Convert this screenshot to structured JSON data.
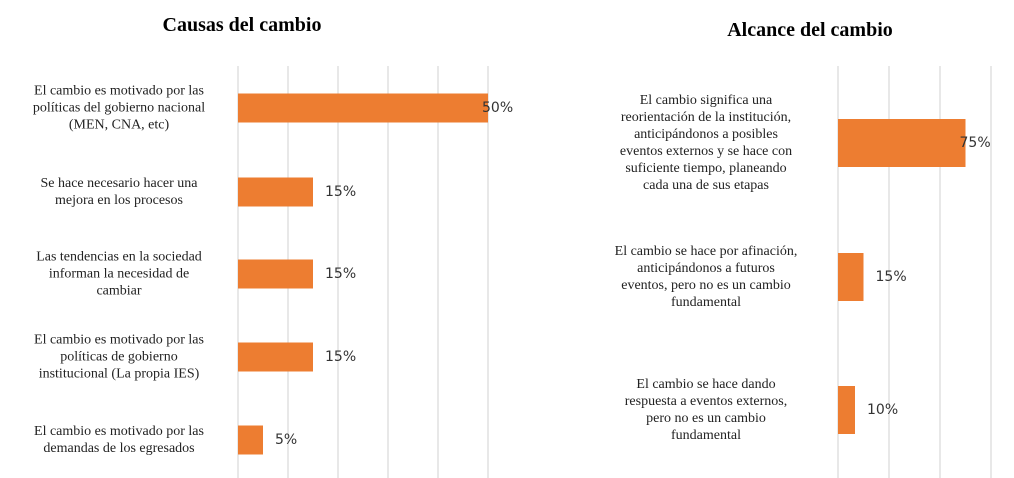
{
  "chart_data": [
    {
      "type": "barh",
      "title": "Causas del cambio",
      "categories": [
        "El cambio es motivado por las\npolíticas del gobierno nacional\n(MEN, CNA, etc)",
        "Se hace necesario hacer una\nmejora en los procesos",
        "Las tendencias en la sociedad\ninforman la necesidad de\ncambiar",
        "El cambio es motivado por las\npolíticas de gobierno\ninstitucional (La propia IES)",
        "El cambio es motivado por las\ndemandas de los egresados"
      ],
      "values": [
        50,
        15,
        15,
        15,
        5
      ],
      "value_labels": [
        "50%",
        "15%",
        "15%",
        "15%",
        "5%"
      ],
      "color": "#ed7d31",
      "xlim": [
        0,
        50
      ],
      "xticks": [
        0,
        10,
        20,
        30,
        40,
        50
      ],
      "grid": true
    },
    {
      "type": "barh",
      "title": "Alcance del cambio",
      "categories": [
        "El cambio significa una\nreorientación de la institución,\nanticipándonos a posibles\neventos externos y se hace con\nsuficiente tiempo, planeando\ncada una de sus etapas",
        "El cambio se hace por afinación,\nanticipándonos a futuros\neventos, pero no es un cambio\nfundamental",
        "El cambio se hace dando\nrespuesta a eventos externos,\npero no es un cambio\nfundamental"
      ],
      "values": [
        75,
        15,
        10
      ],
      "value_labels": [
        "75%",
        "15%",
        "10%"
      ],
      "color": "#ed7d31",
      "xlim": [
        0,
        100
      ],
      "xticks": [
        0,
        30,
        60,
        90
      ],
      "grid": true
    }
  ]
}
